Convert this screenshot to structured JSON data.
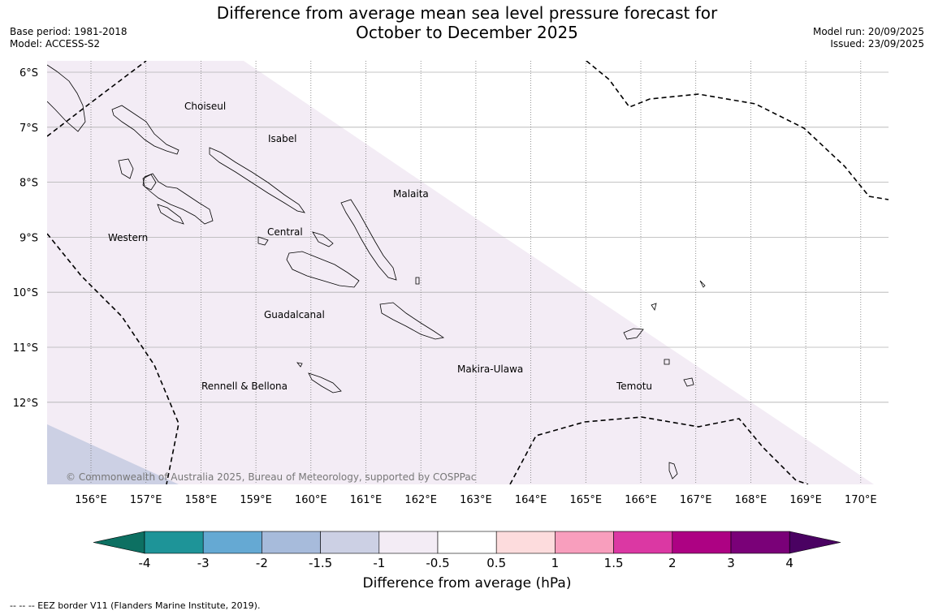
{
  "title": {
    "line1": "Difference from average mean sea level pressure forecast for",
    "line2": "October to December 2025"
  },
  "meta": {
    "base_period": "Base period: 1981-2018",
    "model": "Model: ACCESS-S2",
    "model_run": "Model run: 20/09/2025",
    "issued": "Issued: 23/09/2025"
  },
  "map": {
    "lat_labels": [
      "6°S",
      "7°S",
      "8°S",
      "9°S",
      "10°S",
      "11°S",
      "12°S"
    ],
    "lon_labels": [
      "156°E",
      "157°E",
      "158°E",
      "159°E",
      "160°E",
      "161°E",
      "162°E",
      "163°E",
      "164°E",
      "165°E",
      "166°E",
      "167°E",
      "168°E",
      "169°E",
      "170°E"
    ],
    "places": [
      "Choiseul",
      "Isabel",
      "Malaita",
      "Western",
      "Central",
      "Guadalcanal",
      "Makira-Ulawa",
      "Rennell & Bellona",
      "Temotu"
    ],
    "copyright": "© Commonwealth of Australia 2025, Bureau of Meteorology, supported by COSPPac",
    "colors": {
      "minus_1_5_to_minus_1": "#ccd0e4",
      "minus_1_to_minus_0_5": "#f3ecf5",
      "neutral": "#ffffff"
    }
  },
  "colorbar": {
    "ticks": [
      "-4",
      "-3",
      "-2",
      "-1.5",
      "-1",
      "-0.5",
      "0.5",
      "1",
      "1.5",
      "2",
      "3",
      "4"
    ],
    "colors": [
      "#0d7062",
      "#1e9498",
      "#65a9d3",
      "#a7bbdb",
      "#ccd0e4",
      "#f3ecf5",
      "#ffffff",
      "#fddcdd",
      "#f89ebd",
      "#db38a3",
      "#ad0283",
      "#7a0178",
      "#4a0262"
    ],
    "label": "Difference from average (hPa)"
  },
  "footnote": "--  --  -- EEZ border V11 (Flanders Marine Institute, 2019)."
}
